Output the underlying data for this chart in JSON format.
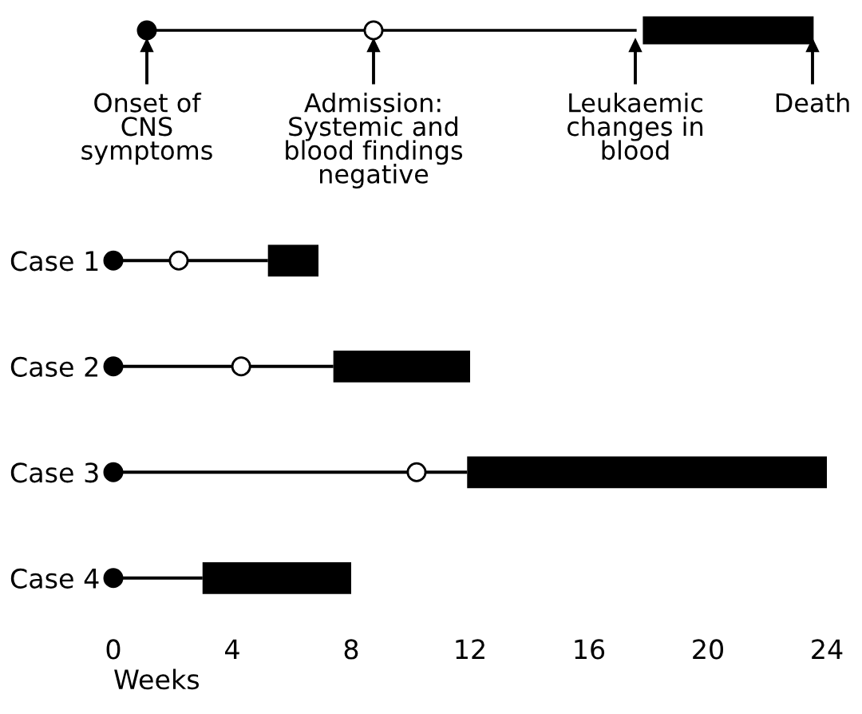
{
  "chart_data": {
    "type": "bar",
    "orientation": "horizontal",
    "stacked": true,
    "categories": [
      "Case 1",
      "Case 2",
      "Case 3",
      "Case 4"
    ],
    "series": [
      {
        "color": "#000000",
        "values": [
          5.2,
          7.4,
          11.9,
          3.0
        ]
      },
      {
        "color": "#000000",
        "values": [
          1.7,
          4.6,
          12.1,
          5.0
        ]
      },
      {
        "type": "scatter",
        "marker": "circle",
        "color": "#000000",
        "values": [
          0,
          0,
          0,
          0
        ]
      },
      {
        "type": "scatter",
        "marker": "circle",
        "color": "#ffffff",
        "values": [
          2.2,
          4.3,
          10.2,
          null
        ]
      }
    ],
    "xlabel": "Weeks",
    "xlim": [
      0,
      24
    ],
    "xticks": [
      0,
      4,
      8,
      12,
      16,
      20,
      24
    ],
    "grid": false,
    "legend": false,
    "annotations": [
      "Onset of\nCNS\nsymptoms",
      "Admission:\nSystemic and\nblood findings\nnegative",
      "Leukaemic\nchanges in\nblood",
      "Death"
    ]
  }
}
